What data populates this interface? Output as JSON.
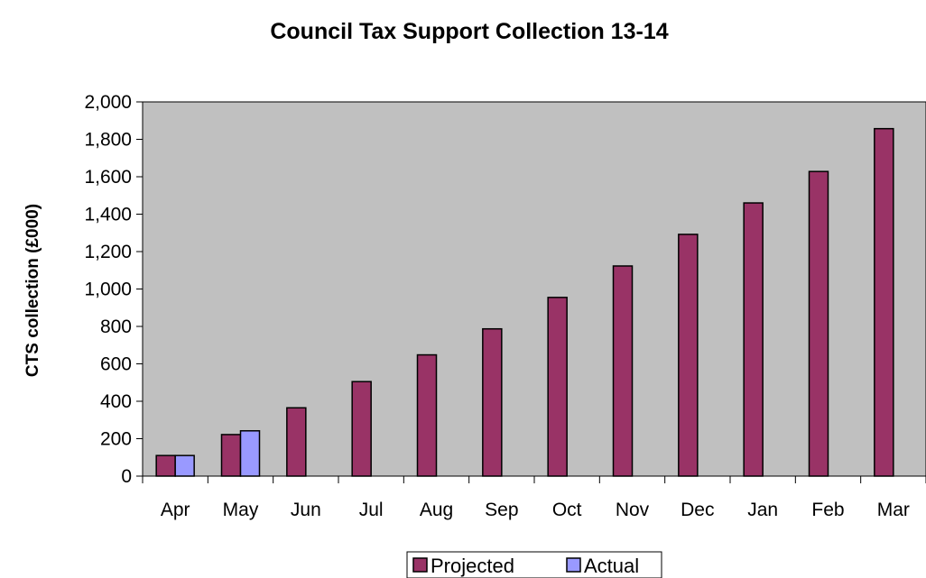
{
  "chart_data": {
    "type": "bar",
    "title": "Council Tax Support Collection 13-14",
    "xlabel": "",
    "ylabel": "CTS collection (£000)",
    "ylim": [
      0,
      2000
    ],
    "yticks": [
      "0",
      "200",
      "400",
      "600",
      "800",
      "1,000",
      "1,200",
      "1,400",
      "1,600",
      "1,800",
      "2,000"
    ],
    "ytick_values": [
      0,
      200,
      400,
      600,
      800,
      1000,
      1200,
      1400,
      1600,
      1800,
      2000
    ],
    "categories": [
      "Apr",
      "May",
      "Jun",
      "Jul",
      "Aug",
      "Sep",
      "Oct",
      "Nov",
      "Dec",
      "Jan",
      "Feb",
      "Mar"
    ],
    "series": [
      {
        "name": "Projected",
        "color": "#993366",
        "values": [
          110,
          222,
          365,
          505,
          648,
          787,
          955,
          1123,
          1292,
          1460,
          1628,
          1857
        ]
      },
      {
        "name": "Actual",
        "color": "#9999ff",
        "values": [
          110,
          242,
          null,
          null,
          null,
          null,
          null,
          null,
          null,
          null,
          null,
          null
        ]
      }
    ],
    "plot_background": "#c0c0c0",
    "grid": false,
    "legend_position": "bottom"
  }
}
